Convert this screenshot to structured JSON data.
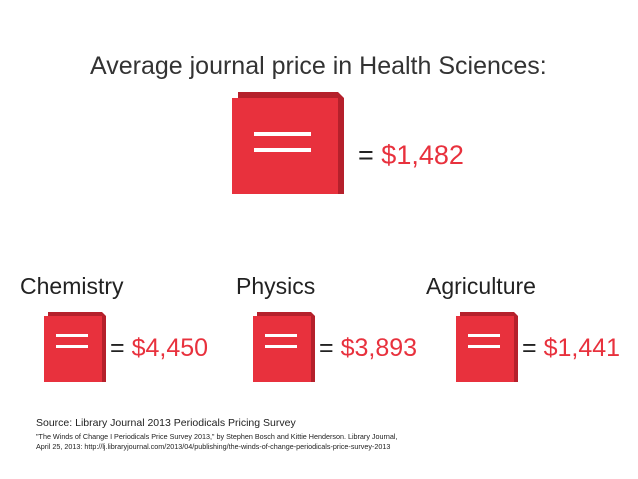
{
  "title": "Average journal price in Health Sciences:",
  "main": {
    "equals": "=",
    "price": "$1,482",
    "icon": "book-icon"
  },
  "categories": [
    {
      "name": "Chemistry",
      "equals": "=",
      "price": "$4,450",
      "icon": "book-icon"
    },
    {
      "name": "Physics",
      "equals": "=",
      "price": "$3,893",
      "icon": "book-icon"
    },
    {
      "name": "Agriculture",
      "equals": "=",
      "price": "$1,441",
      "icon": "book-icon"
    }
  ],
  "source": {
    "label": "Source: Library Journal 2013 Periodicals Pricing Survey",
    "citation_line1": "\"The Winds of Change I Periodicals Price Survey 2013,\" by Stephen Bosch and Kittie Henderson. Library Journal,",
    "citation_line2": "April 25, 2013: http://lj.libraryjournal.com/2013/04/publishing/the-winds-of-change-periodicals-price-survey-2013"
  },
  "colors": {
    "accent": "#e8313d",
    "book_shadow": "#b5202b",
    "text": "#222222"
  }
}
